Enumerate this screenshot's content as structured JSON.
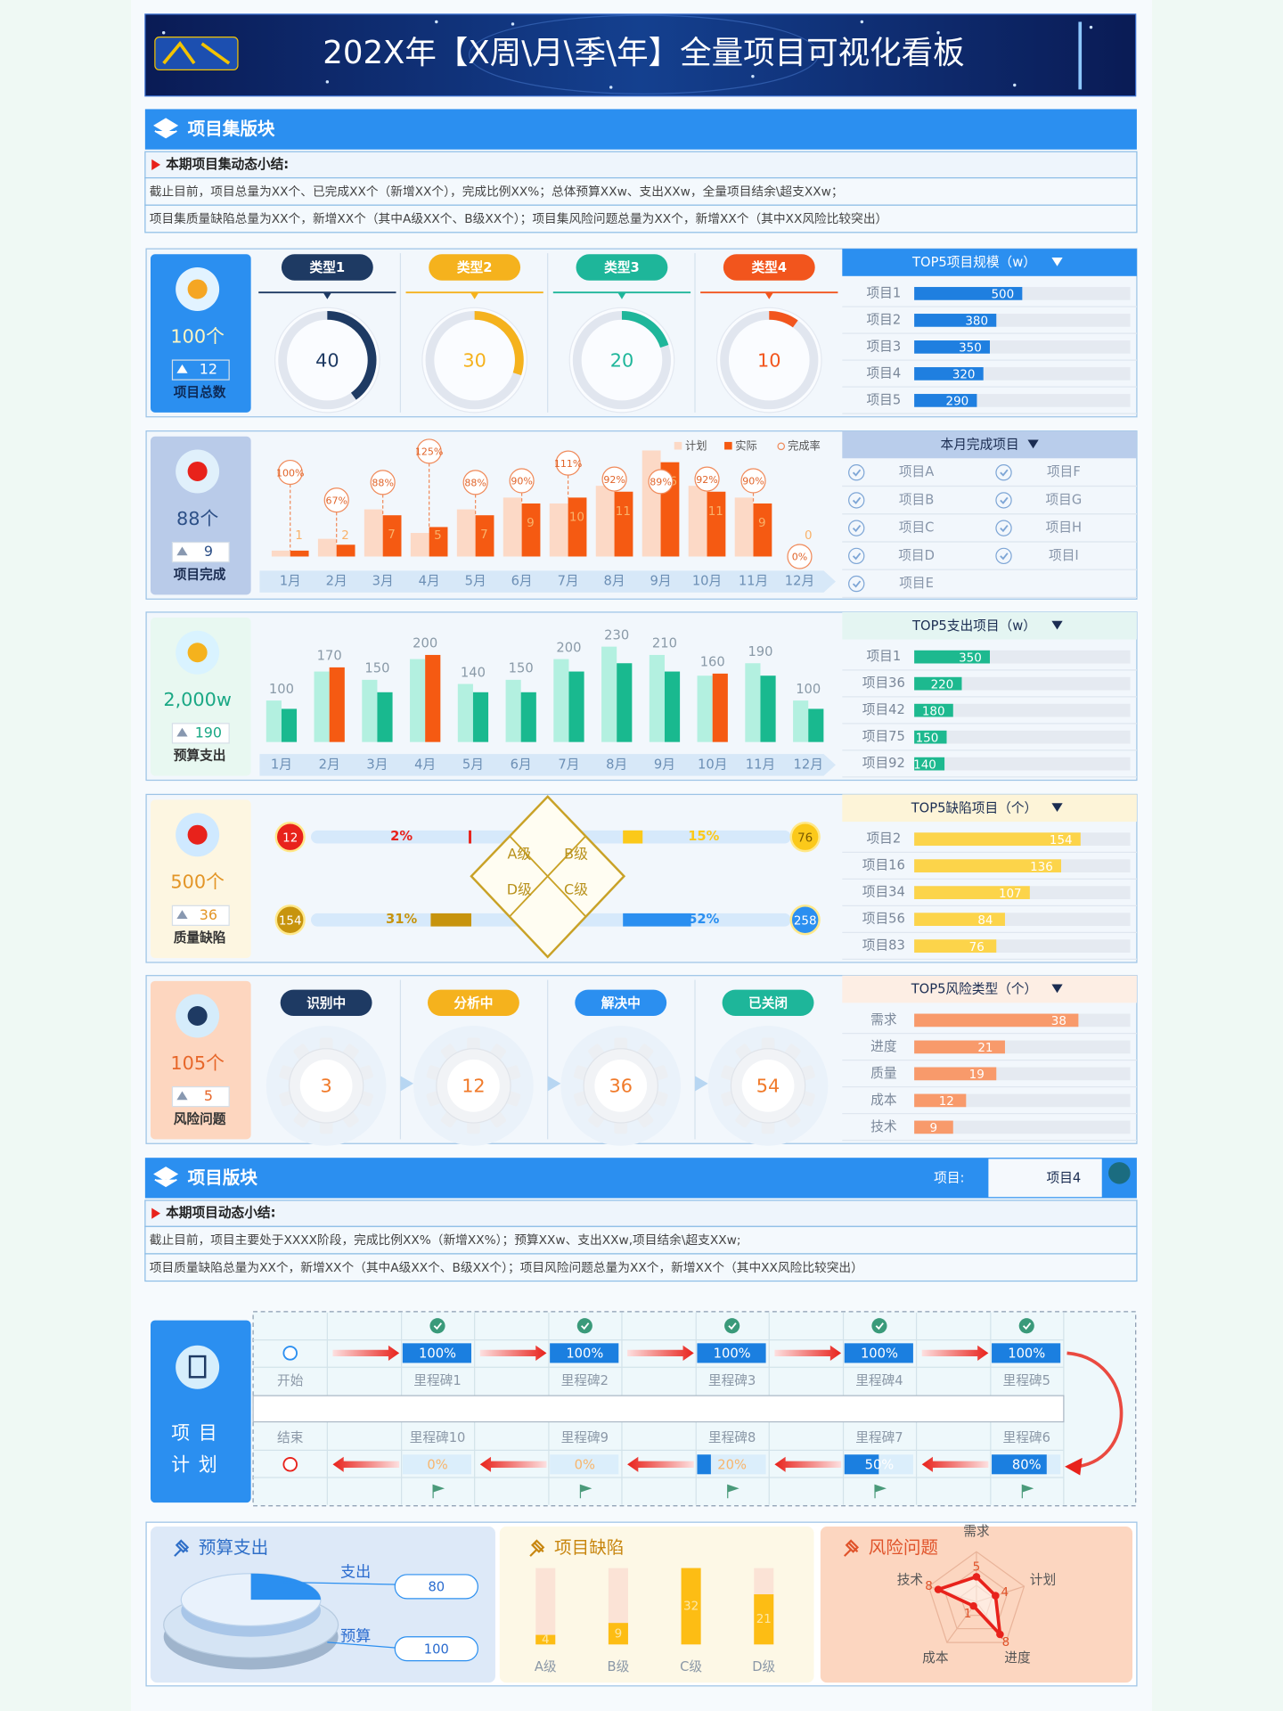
{
  "header": {
    "title": "202X年【X周\\月\\季\\年】全量项目可视化看板"
  },
  "project_set": {
    "title": "项目集版块",
    "summary_heading": "本期项目集动态小结:",
    "summary": [
      "截止目前，项目总量为XX个、已完成XX个（新增XX个），完成比例XX%；总体预算XXw、支出XXw，全量项目结余\\超支XXw；",
      "项目集质量缺陷总量为XX个，新增XX个（其中A级XX个、B级XX个）；项目集风险问题总量为XX个，新增XX个（其中XX风险比较突出）"
    ],
    "total": {
      "kpi": "100个",
      "increase": 12,
      "label": "项目总数",
      "types": {
        "type": "donut",
        "categories": [
          "类型1",
          "类型2",
          "类型3",
          "类型4"
        ],
        "values": [
          40,
          30,
          20,
          10
        ],
        "colors": [
          "#1e3a63",
          "#f5b21d",
          "#1eb69a",
          "#f2551d"
        ]
      },
      "top5": {
        "type": "bar",
        "title": "TOP5项目规模（w）",
        "categories": [
          "项目1",
          "项目2",
          "项目3",
          "项目4",
          "项目5"
        ],
        "values": [
          500,
          380,
          350,
          320,
          290
        ],
        "xlim": [
          0,
          1000
        ],
        "color": "#1f7fe0"
      }
    },
    "completed": {
      "kpi": "88个",
      "increase": 9,
      "label": "项目完成",
      "chart": {
        "type": "bar",
        "categories": [
          "1月",
          "2月",
          "3月",
          "4月",
          "5月",
          "6月",
          "7月",
          "8月",
          "9月",
          "10月",
          "11月",
          "12月"
        ],
        "series": [
          {
            "name": "计划",
            "color": "#fcd9c6",
            "values": [
              1,
              3,
              8,
              4,
              8,
              10,
              9,
              12,
              18,
              12,
              10,
              0
            ]
          },
          {
            "name": "实际",
            "color": "#f55a12",
            "values": [
              1,
              2,
              7,
              5,
              7,
              9,
              10,
              11,
              16,
              11,
              9,
              0
            ]
          }
        ],
        "rate": {
          "name": "完成率",
          "color": "#f08a5a",
          "values": [
            100,
            67,
            88,
            125,
            88,
            90,
            111,
            92,
            89,
            92,
            90,
            0
          ],
          "value_labels": [
            "100%",
            "67%",
            "88%",
            "125%",
            "88%",
            "90%",
            "111%",
            "92%",
            "89%",
            "92%",
            "90%",
            "0%"
          ]
        },
        "ylim": [
          0,
          20
        ],
        "y2lim": [
          0,
          140
        ]
      },
      "list": {
        "title": "本月完成项目",
        "items": [
          "项目A",
          "项目B",
          "项目C",
          "项目D",
          "项目E",
          "项目F",
          "项目G",
          "项目H",
          "项目I"
        ]
      }
    },
    "budget": {
      "kpi": "2,000w",
      "increase": 190,
      "label": "预算支出",
      "chart": {
        "type": "bar",
        "categories": [
          "1月",
          "2月",
          "3月",
          "4月",
          "5月",
          "6月",
          "7月",
          "8月",
          "9月",
          "10月",
          "11月",
          "12月"
        ],
        "budget": {
          "color": "#b3f0e0",
          "values": [
            100,
            170,
            150,
            200,
            140,
            150,
            200,
            230,
            210,
            160,
            190,
            100
          ]
        },
        "expense": {
          "color": "#19b98f",
          "over_color": "#f55a12",
          "values": [
            80,
            180,
            120,
            210,
            120,
            120,
            170,
            190,
            170,
            165,
            160,
            80
          ]
        },
        "ylim": [
          0,
          300
        ]
      },
      "top5": {
        "type": "bar",
        "title": "TOP5支出项目（w）",
        "categories": [
          "项目1",
          "项目36",
          "项目42",
          "项目75",
          "项目92"
        ],
        "values": [
          350,
          220,
          180,
          150,
          140
        ],
        "xlim": [
          0,
          1000
        ],
        "color": "#1db98f"
      }
    },
    "defects": {
      "kpi": "500个",
      "increase": 36,
      "label": "质量缺陷",
      "grades": [
        {
          "name": "A级",
          "count": 12,
          "pct": 2,
          "pct_label": "2%",
          "color": "#e8221b"
        },
        {
          "name": "B级",
          "count": 76,
          "pct": 15,
          "pct_label": "15%",
          "color": "#fbc91a"
        },
        {
          "name": "C级",
          "count": 258,
          "pct": 52,
          "pct_label": "52%",
          "color": "#2b8ff0"
        },
        {
          "name": "D级",
          "count": 154,
          "pct": 31,
          "pct_label": "31%",
          "color": "#c7940e"
        }
      ],
      "pct_lim": [
        0,
        100
      ],
      "top5": {
        "type": "bar",
        "title": "TOP5缺陷项目（个）",
        "categories": [
          "项目2",
          "项目16",
          "项目34",
          "项目56",
          "项目83"
        ],
        "values": [
          154,
          136,
          107,
          84,
          76
        ],
        "xlim": [
          0,
          200
        ],
        "color": "#fcd44a"
      }
    },
    "risks": {
      "kpi": "105个",
      "increase": 5,
      "label": "风险问题",
      "stages": {
        "categories": [
          "识别中",
          "分析中",
          "解决中",
          "已关闭"
        ],
        "values": [
          3,
          12,
          36,
          54
        ],
        "colors": [
          "#1e3a63",
          "#f5b21d",
          "#2b8ff0",
          "#1eb69a"
        ]
      },
      "top5": {
        "type": "bar",
        "title": "TOP5风险类型（个）",
        "categories": [
          "需求",
          "进度",
          "质量",
          "成本",
          "技术"
        ],
        "values": [
          38,
          21,
          19,
          12,
          9
        ],
        "xlim": [
          0,
          50
        ],
        "color": "#f89a6b"
      }
    }
  },
  "project": {
    "title": "项目版块",
    "selector_label": "项目:",
    "selected": "项目4",
    "summary_heading": "本期项目动态小结:",
    "summary": [
      "截止目前，项目主要处于XXXX阶段，完成比例XX%（新增XX%）；预算XXw、支出XXw,项目结余\\超支XXw;",
      "项目质量缺陷总量为XX个，新增XX个（其中A级XX个、B级XX个）；项目风险问题总量为XX个，新增XX个（其中XX风险比较突出）"
    ],
    "plan": {
      "title": [
        "项目",
        "计划"
      ],
      "start": "开始",
      "end": "结束",
      "milestones": [
        {
          "name": "里程碑1",
          "progress": 100,
          "progress_label": "100%"
        },
        {
          "name": "里程碑2",
          "progress": 100,
          "progress_label": "100%"
        },
        {
          "name": "里程碑3",
          "progress": 100,
          "progress_label": "100%"
        },
        {
          "name": "里程碑4",
          "progress": 100,
          "progress_label": "100%"
        },
        {
          "name": "里程碑5",
          "progress": 100,
          "progress_label": "100%"
        },
        {
          "name": "里程碑6",
          "progress": 80,
          "progress_label": "80%"
        },
        {
          "name": "里程碑7",
          "progress": 50,
          "progress_label": "50%"
        },
        {
          "name": "里程碑8",
          "progress": 20,
          "progress_label": "20%"
        },
        {
          "name": "里程碑9",
          "progress": 0,
          "progress_label": "0%"
        },
        {
          "name": "里程碑10",
          "progress": 0,
          "progress_label": "0%"
        }
      ],
      "progress_lim": [
        0,
        100
      ]
    },
    "budget": {
      "title": "预算支出",
      "expense_label": "支出",
      "expense": 80,
      "budget_label": "预算",
      "budget": 100
    },
    "defects": {
      "type": "bar",
      "title": "项目缺陷",
      "categories": [
        "A级",
        "B级",
        "C级",
        "D级"
      ],
      "values": [
        4,
        9,
        32,
        21
      ],
      "ylim": [
        0,
        32
      ],
      "color": "#fdbd14"
    },
    "risks": {
      "type": "radar",
      "title": "风险问题",
      "categories": [
        "需求",
        "计划",
        "进度",
        "成本",
        "技术"
      ],
      "values": [
        5,
        4,
        8,
        1,
        8
      ],
      "rlim": [
        0,
        10
      ],
      "color": "#e8221b"
    }
  }
}
